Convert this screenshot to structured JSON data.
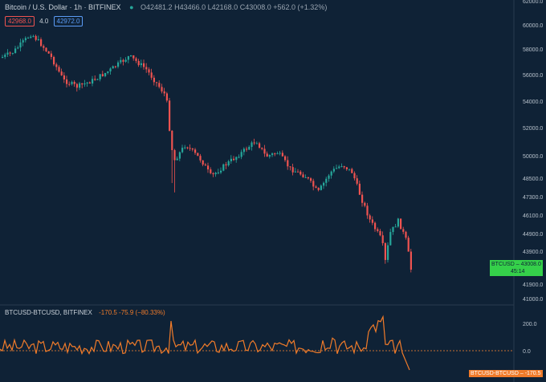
{
  "header": {
    "symbol": "Bitcoin / U.S. Dollar · 1h · BITFINEX",
    "open": "O42481.2",
    "high": "H43466.0",
    "low": "L42168.0",
    "close": "C43008.0",
    "change": "+562.0 (+1.32%)"
  },
  "order": {
    "bid": "42968.0",
    "qty": "4.0",
    "ask": "42972.0"
  },
  "price_axis": {
    "labels": [
      "62000.0",
      "60000.0",
      "58000.0",
      "56000.0",
      "54000.0",
      "52000.0",
      "50000.0",
      "48500.0",
      "47300.0",
      "46100.0",
      "44900.0",
      "43900.0",
      "42900.0",
      "41900.0",
      "41000.0"
    ]
  },
  "last_price": {
    "label": "BTCUSD",
    "value": "43008.0",
    "countdown": "45:14"
  },
  "indicator": {
    "title": "BTCUSD-BTCUSD, BITFINEX",
    "values": "-170.5  -75.9 (−80.33%)",
    "axis_labels": [
      "200.0",
      "0.0"
    ],
    "tag_label": "BTCUSD-BTCUSD",
    "tag_value": "-170.5"
  },
  "colors": {
    "up": "#26a69a",
    "down": "#ef5350",
    "accent": "#f07b2a",
    "bg": "#0f2236",
    "price_tag": "#35d04a"
  }
}
